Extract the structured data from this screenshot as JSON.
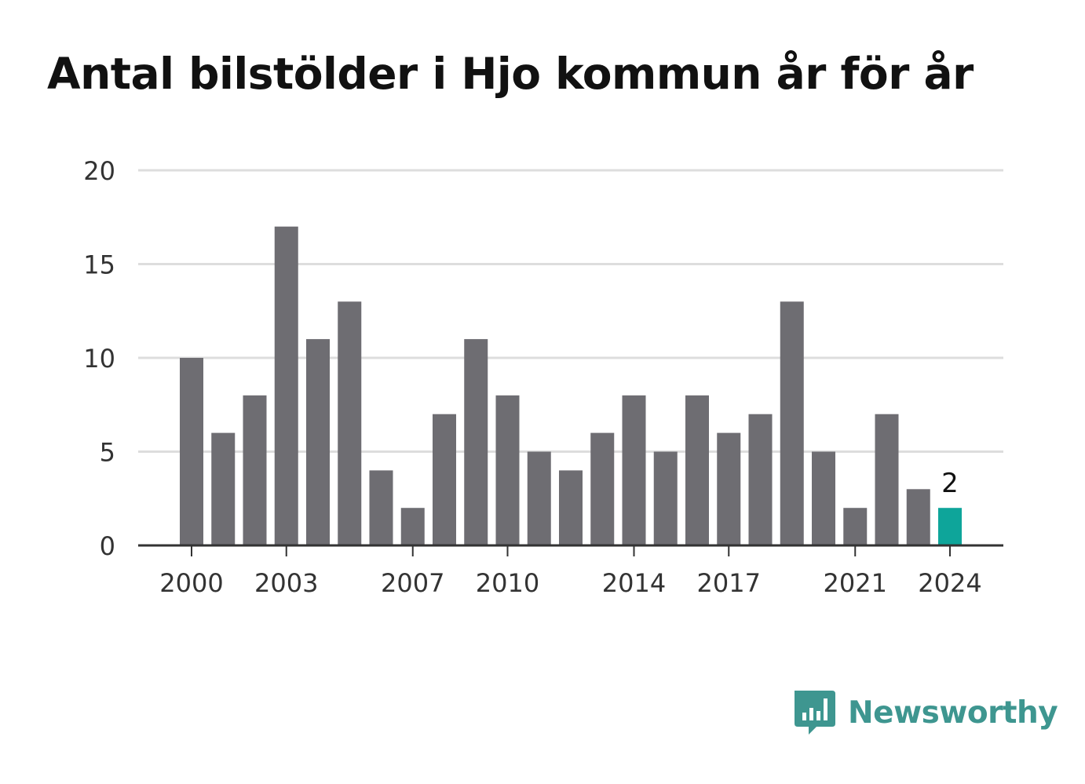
{
  "title": "Antal bilstölder i Hjo kommun år för år",
  "brand": {
    "name": "Newsworthy",
    "color": "#3e9690",
    "icon": "bar-chart-speech-bubble-icon"
  },
  "chart_data": {
    "type": "bar",
    "categories": [
      "2000",
      "2001",
      "2002",
      "2003",
      "2004",
      "2005",
      "2006",
      "2007",
      "2008",
      "2009",
      "2010",
      "2011",
      "2012",
      "2013",
      "2014",
      "2015",
      "2016",
      "2017",
      "2018",
      "2019",
      "2020",
      "2021",
      "2022",
      "2023",
      "2024"
    ],
    "values": [
      10,
      6,
      8,
      17,
      11,
      13,
      4,
      2,
      7,
      11,
      8,
      5,
      4,
      6,
      8,
      5,
      8,
      6,
      7,
      13,
      5,
      2,
      7,
      3,
      2
    ],
    "x_tick_labels": [
      "2000",
      "2003",
      "2007",
      "2010",
      "2014",
      "2017",
      "2021",
      "2024"
    ],
    "y_ticks": [
      0,
      5,
      10,
      15,
      20
    ],
    "ylim": [
      0,
      20
    ],
    "grid": true,
    "highlight": {
      "category": "2024",
      "label": "2"
    },
    "colors": {
      "bar": "#6e6d72",
      "highlight": "#0ea59a",
      "grid": "#dddddd",
      "axis": "#333333"
    }
  }
}
